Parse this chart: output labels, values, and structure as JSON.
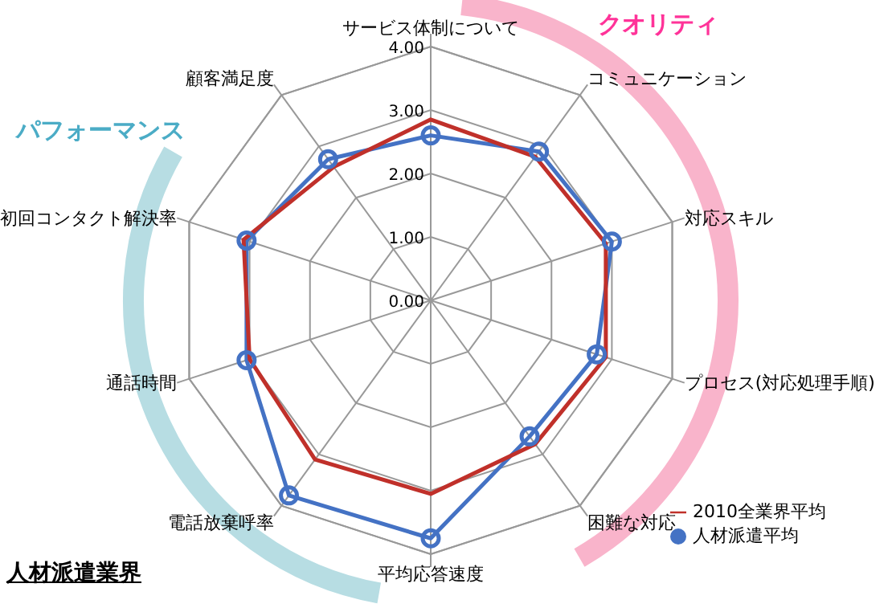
{
  "chart_data": {
    "type": "radar",
    "title": "人材派遣業界",
    "annotations": [
      "パフォーマンス",
      "クオリティ"
    ],
    "categories": [
      "サービス体制について",
      "コミュニケーション",
      "対応スキル",
      "プロセス(対応処理手順)",
      "困難な対応",
      "平均応答速度",
      "電話放棄呼率",
      "通話時間",
      "初回コンタクト解決率",
      "顧客満足度"
    ],
    "series": [
      {
        "name": "人材派遣平均",
        "color": "#4472c4",
        "marker": "circle",
        "values": [
          2.6,
          2.9,
          3.0,
          2.75,
          2.65,
          3.75,
          3.8,
          3.05,
          3.05,
          2.75
        ]
      },
      {
        "name": "2010全業界平均",
        "color": "#c0302a",
        "marker": "none",
        "values": [
          2.85,
          2.8,
          2.9,
          2.9,
          2.8,
          3.05,
          3.1,
          3.0,
          3.1,
          2.6
        ]
      }
    ],
    "ylim": [
      0,
      4
    ],
    "yticks": [
      {
        "value": 0,
        "label": "0.00"
      },
      {
        "value": 1,
        "label": "1.00"
      },
      {
        "value": 2,
        "label": "2.00"
      },
      {
        "value": 3,
        "label": "3.00"
      },
      {
        "value": 4,
        "label": "4.00"
      }
    ],
    "grid": true,
    "legend": "bottom right"
  }
}
